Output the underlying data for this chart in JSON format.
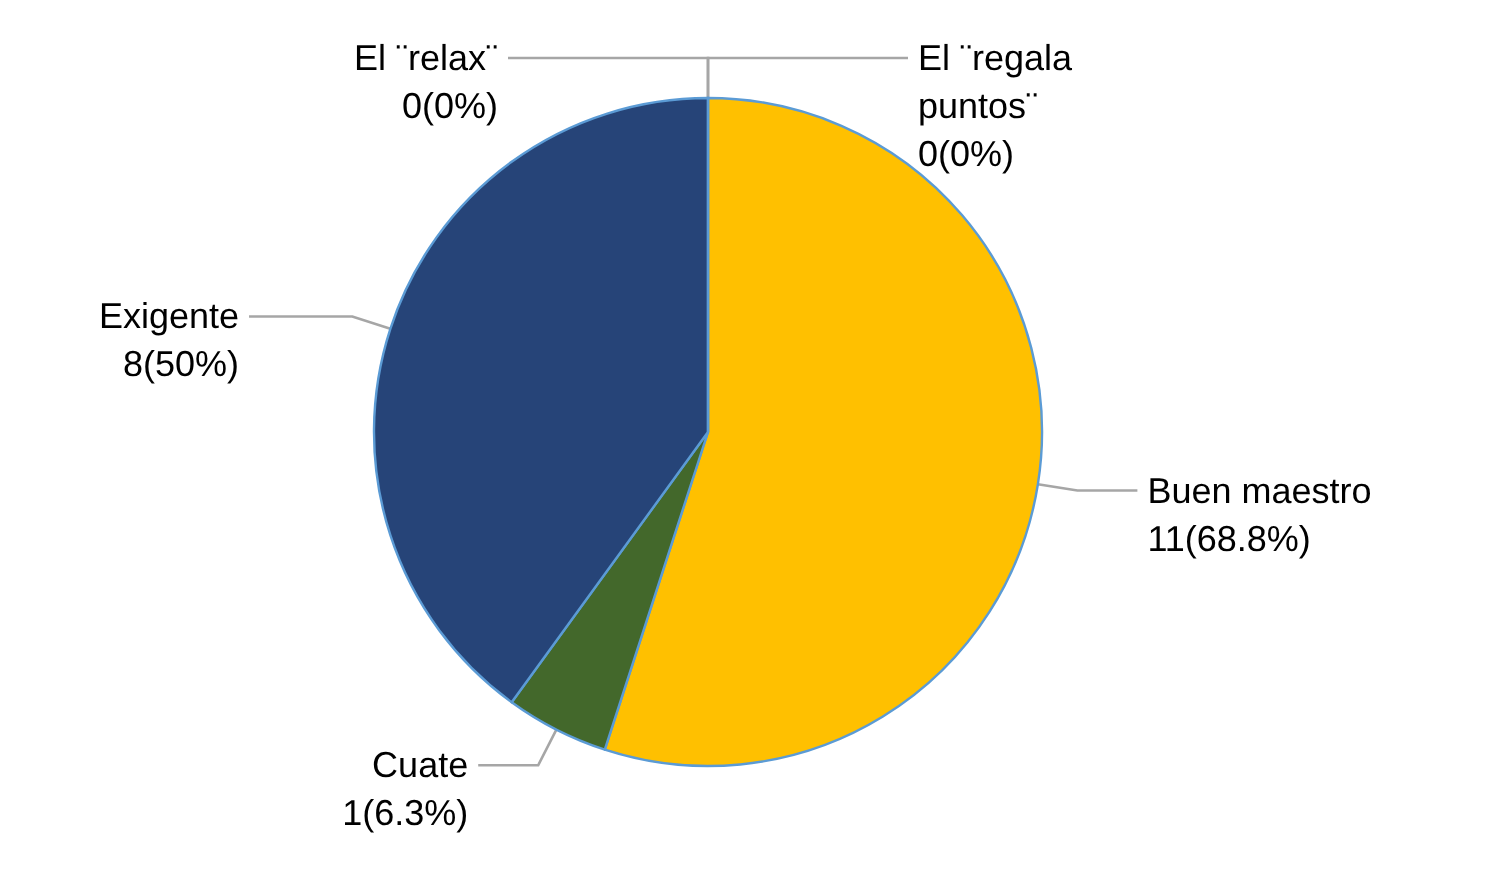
{
  "chart_data": {
    "type": "pie",
    "categories": [
      "El ¨regala puntos¨",
      "Buen maestro",
      "Cuate",
      "Exigente",
      "El ¨relax¨"
    ],
    "values": [
      0,
      11,
      1,
      8,
      0
    ],
    "colors": [
      "#9e480e",
      "#ffc000",
      "#43682b",
      "#264478",
      "#636363"
    ],
    "value_labels": [
      "0(0%)",
      "11(68.8%)",
      "1(6.3%)",
      "8(50%)",
      "0(0%)"
    ]
  }
}
